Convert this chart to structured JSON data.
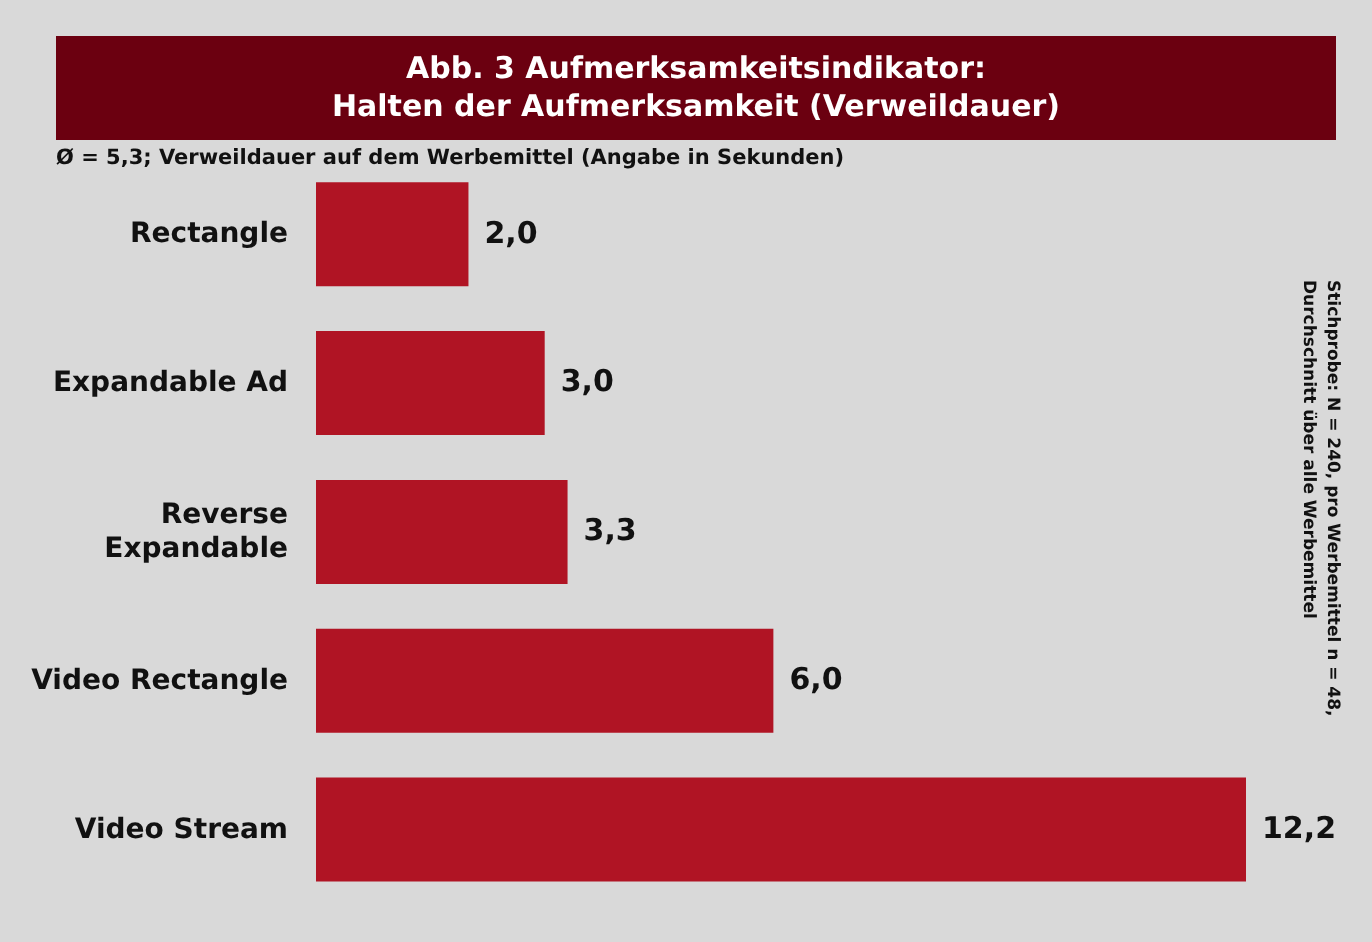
{
  "chart_data": {
    "type": "bar",
    "orientation": "horizontal",
    "title": "Abb. 3 Aufmerksamkeitsindikator:\nHalten der Aufmerksamkeit (Verweildauer)",
    "subtitle": "Ø = 5,3; Verweildauer auf dem Werbemittel (Angabe in Sekunden)",
    "categories": [
      "Rectangle",
      "Expandable Ad",
      "Reverse Expandable",
      "Video Rectangle",
      "Video Stream"
    ],
    "values": [
      2.0,
      3.0,
      3.3,
      6.0,
      12.2
    ],
    "value_labels": [
      "2,0",
      "3,0",
      "3,3",
      "6,0",
      "12,2"
    ],
    "color": "#b01424",
    "tick_labels": false,
    "grid": false,
    "legend": false,
    "annotations": [
      "Stichprobe: N = 240, pro Werbemittel n = 48, Durchschnitt über alle Werbemittel"
    ]
  }
}
